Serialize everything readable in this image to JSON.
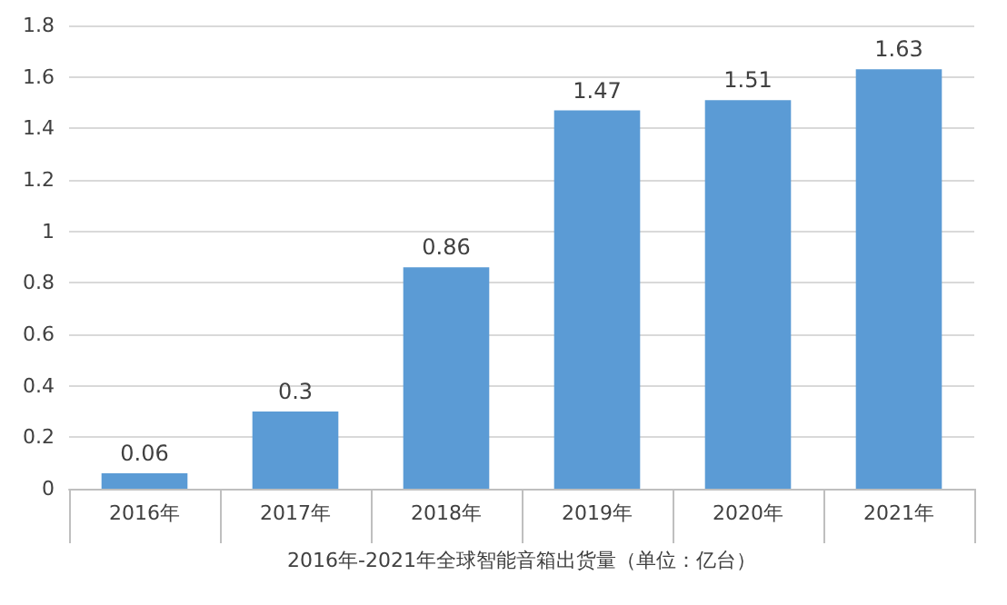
{
  "chart_data": {
    "type": "bar",
    "xlabel": "2016年-2021年全球智能音箱出货量（单位：亿台）",
    "categories": [
      "2016年",
      "2017年",
      "2018年",
      "2019年",
      "2020年",
      "2021年"
    ],
    "values": [
      0.06,
      0.3,
      0.86,
      1.47,
      1.51,
      1.63
    ],
    "color": "#5b9bd5",
    "ylim": [
      0,
      1.8
    ],
    "yticks": [
      0,
      0.2,
      0.4,
      0.6,
      0.8,
      1,
      1.2,
      1.4,
      1.6,
      1.8
    ],
    "grid": "y",
    "data_labels": true
  }
}
